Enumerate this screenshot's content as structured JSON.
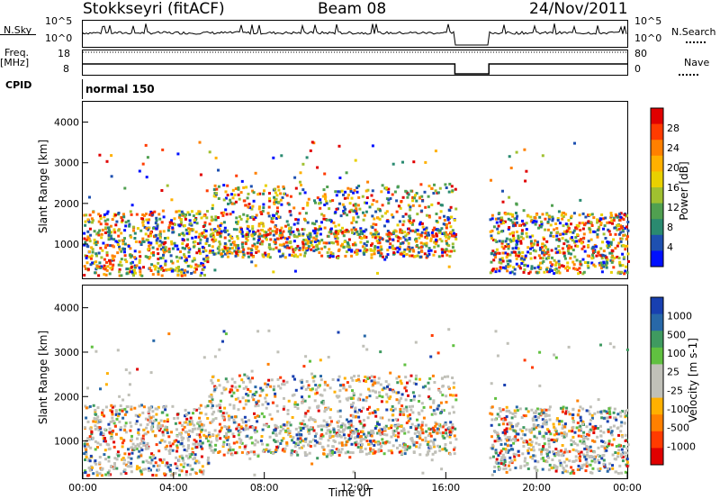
{
  "header": {
    "station": "Stokkseyri (fitACF)",
    "beam": "Beam 08",
    "date": "24/Nov/2011"
  },
  "top_panels": {
    "nsky_label": "N.Sky",
    "nsky_ticks": [
      "10^5",
      "10^0"
    ],
    "nsearch_ticks": [
      "10^5",
      "10^0"
    ],
    "nsearch_label": "N.Search",
    "freq_label": "Freq.",
    "freq_unit": "[MHz]",
    "freq_ticks": [
      "18",
      "8"
    ],
    "nave_ticks": [
      "80",
      "0"
    ],
    "nave_label": "Nave",
    "cpid_label": "CPID",
    "cpid_value": "normal 150"
  },
  "chart_data": [
    {
      "type": "heatmap",
      "name": "power",
      "ylabel": "Slant Range [km]",
      "yticks": [
        "4000",
        "3000",
        "2000",
        "1000"
      ],
      "ylim": [
        180,
        4500
      ],
      "xlim_hours": [
        0,
        24
      ],
      "colorbar_label": "Power [dB]",
      "colorbar_ticks": [
        "28",
        "24",
        "20",
        "16",
        "12",
        "8",
        "4"
      ],
      "colorbar_colors": [
        "#e00000",
        "#ff3b00",
        "#ff8000",
        "#ffb000",
        "#e8d000",
        "#a0c030",
        "#50a050",
        "#2a8a70",
        "#1e50b0",
        "#0010ff"
      ],
      "gap_hours": [
        16.4,
        17.9
      ]
    },
    {
      "type": "heatmap",
      "name": "velocity",
      "ylabel": "Slant Range [km]",
      "yticks": [
        "4000",
        "3000",
        "2000",
        "1000"
      ],
      "ylim": [
        180,
        4500
      ],
      "xlim_hours": [
        0,
        24
      ],
      "colorbar_label": "Velocity [m s-1]",
      "colorbar_ticks": [
        "1000",
        "500",
        "100",
        "25",
        "-25",
        "-100",
        "-500",
        "-1000"
      ],
      "colorbar_colors": [
        "#1840b0",
        "#2868a8",
        "#3f9a60",
        "#60c040",
        "#c0c0b8",
        "#c0c0b8",
        "#ffb000",
        "#ff8000",
        "#ff3b00",
        "#e00000"
      ],
      "gap_hours": [
        16.4,
        17.9
      ]
    }
  ],
  "xaxis": {
    "ticks": [
      "00:00",
      "04:00",
      "08:00",
      "12:00",
      "16:00",
      "20:00",
      "00:00"
    ],
    "label": "Time UT"
  }
}
